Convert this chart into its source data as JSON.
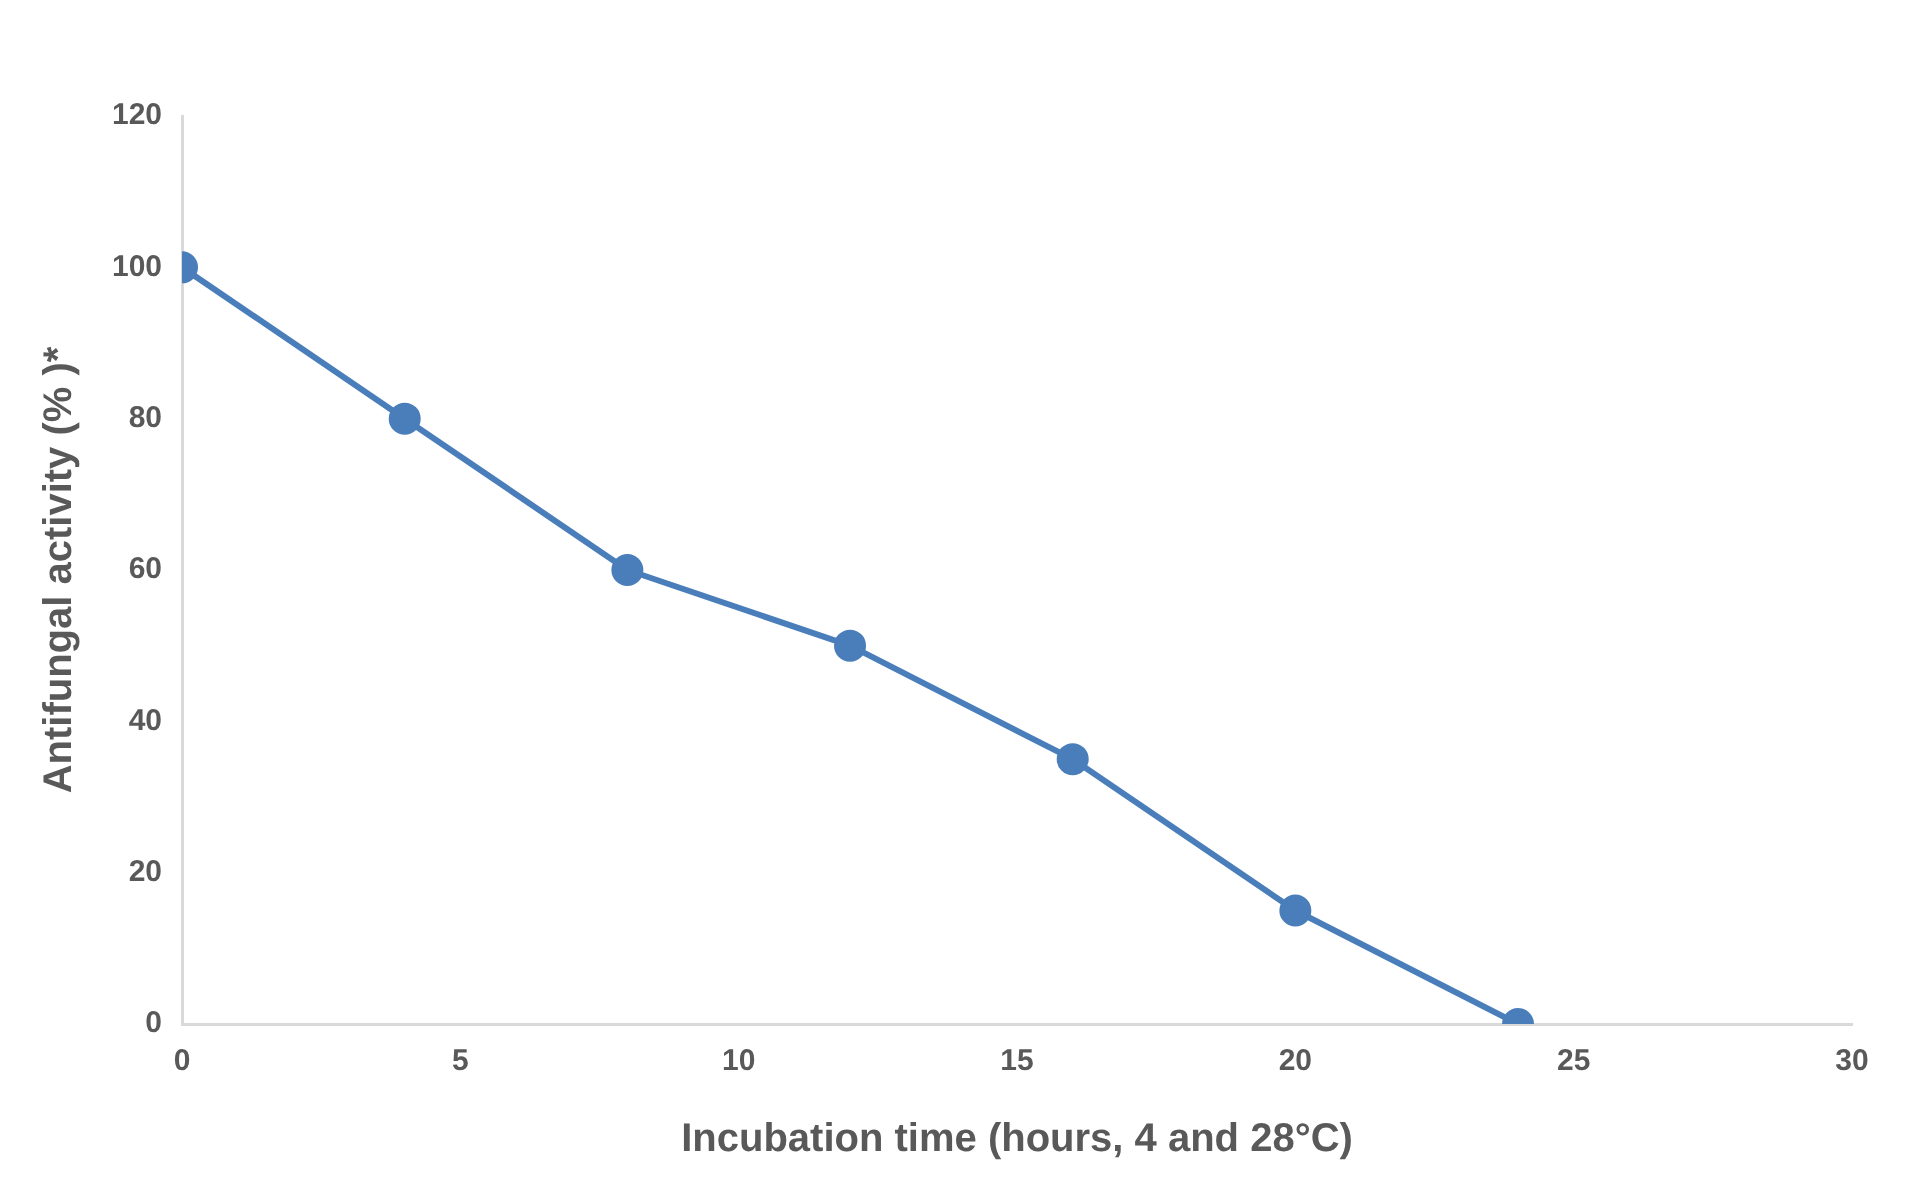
{
  "chart_data": {
    "type": "line",
    "xlabel": "Incubation time (hours, 4 and 28°C)",
    "ylabel": "Antifungal activity (% )*",
    "x": [
      0,
      4,
      8,
      12,
      16,
      20,
      24
    ],
    "series": [
      {
        "color": "#4a7ebb",
        "values": [
          100,
          80,
          60,
          50,
          35,
          15,
          0
        ]
      }
    ],
    "xlim": [
      0,
      30
    ],
    "xticks": [
      0,
      5,
      10,
      15,
      20,
      25,
      30
    ],
    "ylim": [
      0,
      120
    ],
    "yticks": [
      0,
      20,
      40,
      60,
      80,
      100,
      120
    ],
    "grid": false,
    "legend": false,
    "marker": "circle",
    "line_style": "solid"
  }
}
